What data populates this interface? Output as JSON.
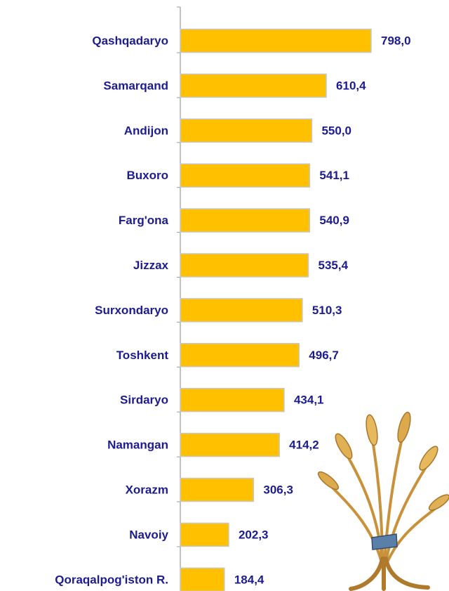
{
  "chart_data": {
    "type": "bar",
    "orientation": "horizontal",
    "categories": [
      "Qashqadaryo",
      "Samarqand",
      "Andijon",
      "Buxoro",
      "Farg'ona",
      "Jizzax",
      "Surxondaryo",
      "Toshkent",
      "Sirdaryo",
      "Namangan",
      "Xorazm",
      "Navoiy",
      "Qoraqalpog'iston R."
    ],
    "values": [
      798.0,
      610.4,
      550.0,
      541.1,
      540.9,
      535.4,
      510.3,
      496.7,
      434.1,
      414.2,
      306.3,
      202.3,
      184.4
    ],
    "value_labels": [
      "798,0",
      "610,4",
      "550,0",
      "541,1",
      "540,9",
      "535,4",
      "510,3",
      "496,7",
      "434,1",
      "414,2",
      "306,3",
      "202,3",
      "184,4"
    ],
    "color": "#ffc000"
  }
}
